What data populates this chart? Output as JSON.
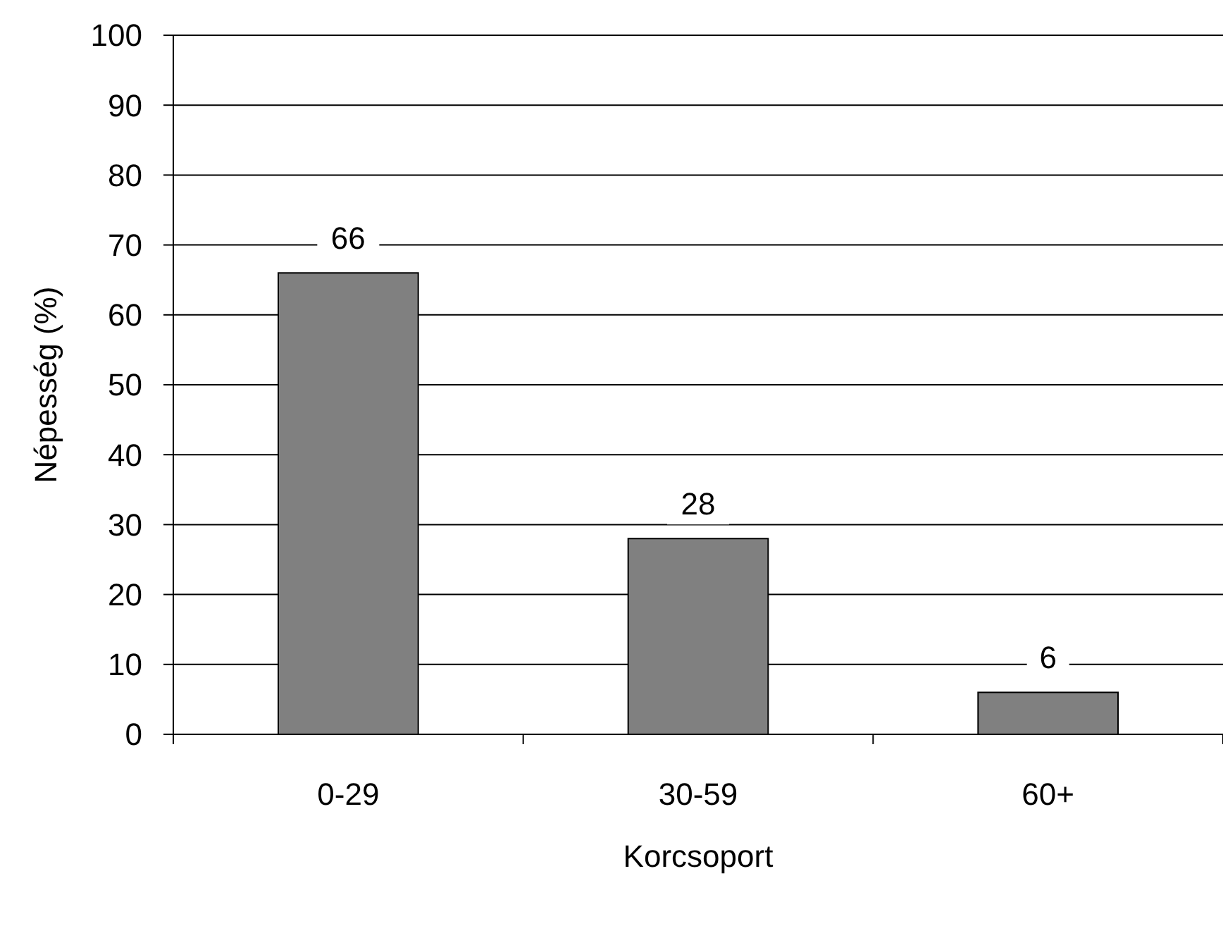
{
  "chart_data": {
    "type": "bar",
    "xlabel": "Korcsoport",
    "ylabel": "Népesség (%)",
    "categories": [
      "0-29",
      "30-59",
      "60+"
    ],
    "values": [
      66,
      28,
      6
    ],
    "color": "#808080",
    "ylim": [
      0,
      100
    ],
    "yticks": [
      0,
      10,
      20,
      30,
      40,
      50,
      60,
      70,
      80,
      90,
      100
    ],
    "grid": "y",
    "data_labels": true
  }
}
